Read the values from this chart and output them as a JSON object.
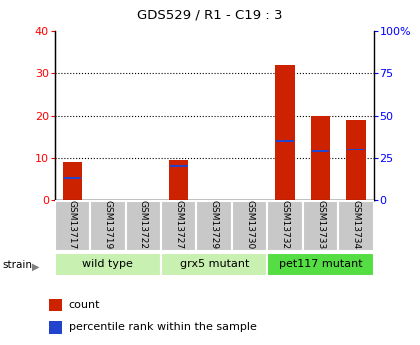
{
  "title": "GDS529 / R1 - C19 : 3",
  "samples": [
    "GSM13717",
    "GSM13719",
    "GSM13722",
    "GSM13727",
    "GSM13729",
    "GSM13730",
    "GSM13732",
    "GSM13733",
    "GSM13734"
  ],
  "counts": [
    9.0,
    0.0,
    0.0,
    9.5,
    0.0,
    0.0,
    32.0,
    20.0,
    19.0
  ],
  "percentiles_pct": [
    13.0,
    0.0,
    0.0,
    20.0,
    0.0,
    0.0,
    35.0,
    29.0,
    30.0
  ],
  "groups": [
    {
      "label": "wild type",
      "start": 0,
      "end": 3
    },
    {
      "label": "grx5 mutant",
      "start": 3,
      "end": 6
    },
    {
      "label": "pet117 mutant",
      "start": 6,
      "end": 9
    }
  ],
  "group_colors": [
    "#c8f0b0",
    "#c8f0b0",
    "#55dd44"
  ],
  "ylim_left": [
    0,
    40
  ],
  "ylim_right": [
    0,
    100
  ],
  "yticks_left": [
    0,
    10,
    20,
    30,
    40
  ],
  "yticks_right": [
    0,
    25,
    50,
    75,
    100
  ],
  "ytick_labels_right": [
    "0",
    "25",
    "50",
    "75",
    "100%"
  ],
  "bar_color": "#cc2200",
  "percentile_color": "#2244cc",
  "sample_box_color": "#c8c8c8",
  "strain_label": "strain",
  "legend_items": [
    {
      "label": "count",
      "color": "#cc2200"
    },
    {
      "label": "percentile rank within the sample",
      "color": "#2244cc"
    }
  ]
}
